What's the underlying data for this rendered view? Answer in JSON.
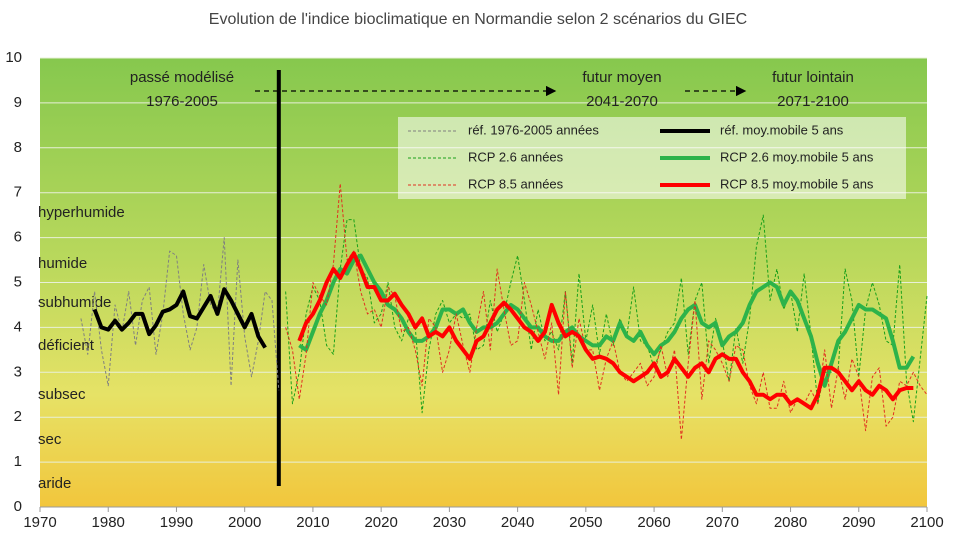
{
  "chart_data": {
    "type": "line",
    "title": "Evolution de l'indice bioclimatique en Normandie selon 2 scénarios du GIEC",
    "xlim": [
      1970,
      2100
    ],
    "xticks": [
      1970,
      1980,
      1990,
      2000,
      2010,
      2020,
      2030,
      2040,
      2050,
      2060,
      2070,
      2080,
      2090,
      2100
    ],
    "ylim": [
      0,
      10
    ],
    "yticks": [
      0,
      1,
      2,
      3,
      4,
      5,
      6,
      7,
      8,
      9,
      10
    ],
    "grid": true,
    "vline_x": 2005,
    "zone_labels": [
      "hyperhumide",
      "humide",
      "subhumide",
      "déficient",
      "subsec",
      "sec",
      "aride"
    ],
    "annotations": [
      {
        "lines": [
          "passé modélisé",
          "1976-2005"
        ]
      },
      {
        "lines": [
          "futur moyen",
          "2041-2070"
        ]
      },
      {
        "lines": [
          "futur lointain",
          "2071-2100"
        ]
      }
    ],
    "series": [
      {
        "name": "réf. 1976-2005 années",
        "color": "#808080",
        "style": "dashed",
        "x": [
          1976,
          1977,
          1978,
          1979,
          1980,
          1981,
          1982,
          1983,
          1984,
          1985,
          1986,
          1987,
          1988,
          1989,
          1990,
          1991,
          1992,
          1993,
          1994,
          1995,
          1996,
          1997,
          1998,
          1999,
          2000,
          2001,
          2002,
          2003,
          2004,
          2005
        ],
        "values": [
          4.2,
          3.4,
          4.8,
          3.5,
          2.7,
          4.5,
          3.9,
          4.8,
          3.6,
          4.6,
          4.9,
          3.4,
          4.3,
          5.7,
          5.6,
          4.3,
          3.5,
          4.0,
          5.4,
          4.5,
          4.3,
          6.0,
          2.7,
          5.5,
          3.8,
          2.9,
          3.7,
          4.8,
          4.6,
          2.6
        ]
      },
      {
        "name": "réf. moy.mobile 5 ans",
        "color": "#000000",
        "style": "solid",
        "x": [
          1978,
          1979,
          1980,
          1981,
          1982,
          1983,
          1984,
          1985,
          1986,
          1987,
          1988,
          1989,
          1990,
          1991,
          1992,
          1993,
          1994,
          1995,
          1996,
          1997,
          1998,
          1999,
          2000,
          2001,
          2002,
          2003
        ],
        "values": [
          4.4,
          4.0,
          3.95,
          4.15,
          3.95,
          4.1,
          4.3,
          4.3,
          3.85,
          4.05,
          4.35,
          4.4,
          4.5,
          4.8,
          4.25,
          4.2,
          4.45,
          4.7,
          4.3,
          4.85,
          4.6,
          4.3,
          4.0,
          4.3,
          3.8,
          3.55
        ]
      },
      {
        "name": "RCP 2.6 années",
        "color": "#1aa01a",
        "style": "dashed",
        "x": [
          2006,
          2007,
          2008,
          2009,
          2010,
          2011,
          2012,
          2013,
          2014,
          2015,
          2016,
          2017,
          2018,
          2019,
          2020,
          2021,
          2022,
          2023,
          2024,
          2025,
          2026,
          2027,
          2028,
          2029,
          2030,
          2031,
          2032,
          2033,
          2034,
          2035,
          2036,
          2037,
          2038,
          2039,
          2040,
          2041,
          2042,
          2043,
          2044,
          2045,
          2046,
          2047,
          2048,
          2049,
          2050,
          2051,
          2052,
          2053,
          2054,
          2055,
          2056,
          2057,
          2058,
          2059,
          2060,
          2061,
          2062,
          2063,
          2064,
          2065,
          2066,
          2067,
          2068,
          2069,
          2070,
          2071,
          2072,
          2073,
          2074,
          2075,
          2076,
          2077,
          2078,
          2079,
          2080,
          2081,
          2082,
          2083,
          2084,
          2085,
          2086,
          2087,
          2088,
          2089,
          2090,
          2091,
          2092,
          2093,
          2094,
          2095,
          2096,
          2097,
          2098,
          2099,
          2100
        ],
        "values": [
          4.8,
          2.3,
          3.0,
          4.3,
          4.9,
          4.6,
          3.6,
          3.4,
          5.3,
          6.4,
          6.4,
          5.3,
          5.1,
          4.1,
          4.3,
          5.0,
          4.0,
          3.7,
          4.2,
          4.0,
          2.1,
          3.5,
          4.3,
          4.6,
          4.1,
          4.3,
          4.2,
          4.3,
          3.5,
          3.6,
          4.6,
          3.9,
          4.3,
          5.0,
          5.6,
          4.6,
          3.5,
          4.4,
          3.7,
          3.9,
          3.5,
          4.8,
          3.2,
          5.2,
          3.7,
          4.5,
          3.4,
          4.3,
          3.6,
          4.2,
          3.8,
          4.9,
          3.7,
          3.6,
          3.1,
          3.5,
          3.9,
          4.1,
          5.1,
          3.4,
          4.6,
          5.0,
          3.2,
          4.2,
          3.7,
          2.8,
          4.0,
          3.2,
          4.2,
          5.8,
          6.5,
          4.6,
          5.3,
          4.4,
          4.8,
          3.9,
          5.2,
          3.8,
          2.3,
          3.0,
          3.0,
          3.1,
          5.3,
          4.6,
          2.9,
          4.4,
          5.0,
          4.5,
          3.7,
          3.6,
          5.4,
          2.8,
          1.9,
          3.3,
          4.7
        ]
      },
      {
        "name": "RCP 2.6 moy.mobile 5 ans",
        "color": "#2db34a",
        "style": "solid",
        "x": [
          2008,
          2009,
          2010,
          2011,
          2012,
          2013,
          2014,
          2015,
          2016,
          2017,
          2018,
          2019,
          2020,
          2021,
          2022,
          2023,
          2024,
          2025,
          2026,
          2027,
          2028,
          2029,
          2030,
          2031,
          2032,
          2033,
          2034,
          2035,
          2036,
          2037,
          2038,
          2039,
          2040,
          2041,
          2042,
          2043,
          2044,
          2045,
          2046,
          2047,
          2048,
          2049,
          2050,
          2051,
          2052,
          2053,
          2054,
          2055,
          2056,
          2057,
          2058,
          2059,
          2060,
          2061,
          2062,
          2063,
          2064,
          2065,
          2066,
          2067,
          2068,
          2069,
          2070,
          2071,
          2072,
          2073,
          2074,
          2075,
          2076,
          2077,
          2078,
          2079,
          2080,
          2081,
          2082,
          2083,
          2084,
          2085,
          2086,
          2087,
          2088,
          2089,
          2090,
          2091,
          2092,
          2093,
          2094,
          2095,
          2096,
          2097,
          2098
        ],
        "values": [
          3.6,
          3.5,
          3.9,
          4.3,
          4.6,
          5.0,
          5.3,
          5.2,
          5.5,
          5.6,
          5.3,
          5.0,
          4.8,
          4.5,
          4.4,
          4.2,
          3.9,
          3.7,
          3.7,
          3.8,
          4.0,
          4.4,
          4.4,
          4.3,
          4.4,
          4.1,
          3.9,
          4.0,
          4.0,
          4.1,
          4.3,
          4.5,
          4.4,
          4.2,
          4.0,
          4.0,
          3.8,
          3.7,
          3.7,
          3.9,
          4.0,
          3.8,
          3.7,
          3.6,
          3.6,
          3.8,
          3.7,
          4.1,
          3.8,
          3.7,
          3.9,
          3.6,
          3.4,
          3.6,
          3.7,
          3.9,
          4.2,
          4.4,
          4.5,
          4.1,
          4.0,
          4.1,
          3.6,
          3.8,
          3.9,
          4.1,
          4.5,
          4.8,
          4.9,
          5.0,
          4.9,
          4.5,
          4.8,
          4.6,
          4.2,
          3.8,
          3.2,
          2.7,
          3.2,
          3.7,
          3.9,
          4.2,
          4.5,
          4.4,
          4.4,
          4.3,
          4.2,
          3.7,
          3.1,
          3.1,
          3.35
        ]
      },
      {
        "name": "RCP 8.5 années",
        "color": "#e03020",
        "style": "dashed",
        "x": [
          2006,
          2007,
          2008,
          2009,
          2010,
          2011,
          2012,
          2013,
          2014,
          2015,
          2016,
          2017,
          2018,
          2019,
          2020,
          2021,
          2022,
          2023,
          2024,
          2025,
          2026,
          2027,
          2028,
          2029,
          2030,
          2031,
          2032,
          2033,
          2034,
          2035,
          2036,
          2037,
          2038,
          2039,
          2040,
          2041,
          2042,
          2043,
          2044,
          2045,
          2046,
          2047,
          2048,
          2049,
          2050,
          2051,
          2052,
          2053,
          2054,
          2055,
          2056,
          2057,
          2058,
          2059,
          2060,
          2061,
          2062,
          2063,
          2064,
          2065,
          2066,
          2067,
          2068,
          2069,
          2070,
          2071,
          2072,
          2073,
          2074,
          2075,
          2076,
          2077,
          2078,
          2079,
          2080,
          2081,
          2082,
          2083,
          2084,
          2085,
          2086,
          2087,
          2088,
          2089,
          2090,
          2091,
          2092,
          2093,
          2094,
          2095,
          2096,
          2097,
          2098,
          2099,
          2100
        ],
        "values": [
          4.0,
          3.5,
          2.4,
          3.4,
          5.0,
          4.7,
          4.5,
          5.4,
          7.2,
          5.5,
          5.7,
          4.8,
          4.3,
          4.4,
          4.0,
          4.9,
          4.7,
          3.9,
          4.0,
          3.5,
          2.7,
          4.2,
          4.0,
          3.0,
          3.5,
          4.3,
          3.6,
          3.0,
          4.0,
          4.8,
          3.5,
          5.3,
          4.4,
          3.6,
          3.7,
          5.0,
          4.5,
          3.9,
          3.3,
          4.1,
          2.5,
          4.8,
          3.1,
          4.2,
          3.5,
          3.5,
          2.6,
          3.3,
          3.7,
          3.0,
          2.8,
          3.0,
          3.2,
          2.7,
          2.9,
          3.6,
          2.9,
          3.5,
          1.5,
          3.2,
          4.6,
          2.4,
          3.7,
          3.5,
          3.2,
          2.8,
          3.6,
          3.5,
          2.7,
          2.3,
          3.0,
          2.2,
          2.2,
          2.8,
          2.1,
          2.4,
          2.3,
          2.6,
          2.3,
          3.5,
          2.2,
          3.1,
          2.4,
          3.3,
          2.9,
          1.7,
          2.9,
          3.1,
          1.8,
          2.0,
          2.8,
          2.7,
          3.0,
          2.7,
          2.5
        ]
      },
      {
        "name": "RCP 8.5 moy.mobile 5 ans",
        "color": "#ff0000",
        "style": "solid",
        "x": [
          2008,
          2009,
          2010,
          2011,
          2012,
          2013,
          2014,
          2015,
          2016,
          2017,
          2018,
          2019,
          2020,
          2021,
          2022,
          2023,
          2024,
          2025,
          2026,
          2027,
          2028,
          2029,
          2030,
          2031,
          2032,
          2033,
          2034,
          2035,
          2036,
          2037,
          2038,
          2039,
          2040,
          2041,
          2042,
          2043,
          2044,
          2045,
          2046,
          2047,
          2048,
          2049,
          2050,
          2051,
          2052,
          2053,
          2054,
          2055,
          2056,
          2057,
          2058,
          2059,
          2060,
          2061,
          2062,
          2063,
          2064,
          2065,
          2066,
          2067,
          2068,
          2069,
          2070,
          2071,
          2072,
          2073,
          2074,
          2075,
          2076,
          2077,
          2078,
          2079,
          2080,
          2081,
          2082,
          2083,
          2084,
          2085,
          2086,
          2087,
          2088,
          2089,
          2090,
          2091,
          2092,
          2093,
          2094,
          2095,
          2096,
          2097,
          2098
        ],
        "values": [
          3.7,
          4.1,
          4.3,
          4.6,
          5.0,
          5.3,
          5.1,
          5.4,
          5.65,
          5.3,
          4.9,
          4.9,
          4.6,
          4.6,
          4.75,
          4.5,
          4.3,
          4.0,
          4.2,
          3.8,
          3.9,
          3.8,
          4.0,
          3.7,
          3.5,
          3.3,
          3.7,
          3.8,
          4.1,
          4.4,
          4.55,
          4.4,
          4.2,
          4.0,
          3.9,
          3.7,
          3.9,
          4.5,
          4.1,
          3.8,
          3.9,
          3.8,
          3.5,
          3.3,
          3.35,
          3.3,
          3.2,
          3.0,
          2.9,
          2.8,
          2.9,
          3.0,
          3.2,
          2.9,
          3.0,
          3.3,
          3.1,
          2.9,
          3.1,
          3.2,
          3.0,
          3.3,
          3.4,
          3.3,
          3.3,
          3.0,
          2.8,
          2.5,
          2.5,
          2.4,
          2.5,
          2.5,
          2.3,
          2.4,
          2.3,
          2.2,
          2.5,
          3.1,
          3.1,
          3.0,
          2.8,
          2.6,
          2.8,
          2.6,
          2.5,
          2.7,
          2.6,
          2.4,
          2.6,
          2.65,
          2.65
        ]
      }
    ]
  }
}
